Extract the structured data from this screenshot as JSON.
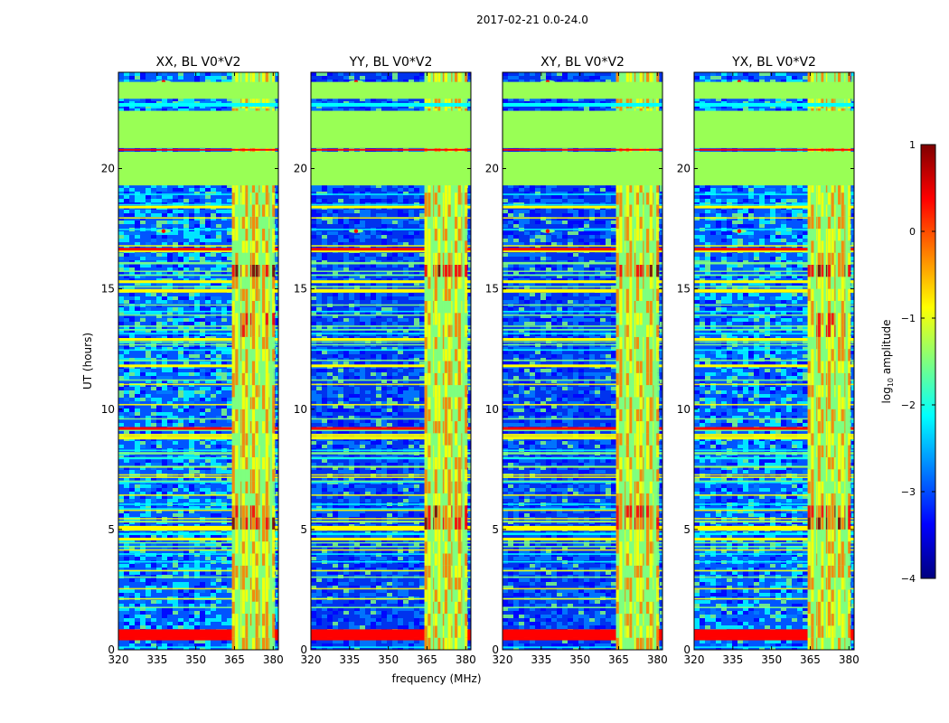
{
  "figure_title": "2017-02-21 0.0-24.0",
  "chart_data": [
    {
      "type": "heatmap",
      "title": "XX, BL V0*V2",
      "xlabel": "",
      "ylabel": "UT (hours)",
      "xlim": [
        320,
        382
      ],
      "ylim": [
        0,
        24
      ],
      "xticks": [
        320,
        335,
        350,
        365,
        380
      ],
      "yticks": [
        0,
        5,
        10,
        15,
        20
      ],
      "rfi_band_mhz": [
        364,
        380
      ],
      "flagged_hours": [
        [
          19.3,
          20.7
        ],
        [
          20.85,
          22.4
        ],
        [
          22.9,
          23.6
        ]
      ]
    },
    {
      "type": "heatmap",
      "title": "YY, BL V0*V2",
      "xlabel": "frequency (MHz)",
      "ylabel": "",
      "xlim": [
        320,
        382
      ],
      "ylim": [
        0,
        24
      ],
      "xticks": [
        320,
        335,
        350,
        365,
        380
      ],
      "yticks": [
        0,
        5,
        10,
        15,
        20
      ],
      "rfi_band_mhz": [
        364,
        380
      ],
      "flagged_hours": [
        [
          19.3,
          20.7
        ],
        [
          20.85,
          22.4
        ],
        [
          22.9,
          23.6
        ]
      ]
    },
    {
      "type": "heatmap",
      "title": "XY, BL V0*V2",
      "xlabel": "",
      "ylabel": "",
      "xlim": [
        320,
        382
      ],
      "ylim": [
        0,
        24
      ],
      "xticks": [
        320,
        335,
        350,
        365,
        380
      ],
      "yticks": [
        0,
        5,
        10,
        15,
        20
      ],
      "rfi_band_mhz": [
        364,
        380
      ],
      "flagged_hours": [
        [
          19.3,
          20.7
        ],
        [
          20.85,
          22.4
        ],
        [
          22.9,
          23.6
        ]
      ]
    },
    {
      "type": "heatmap",
      "title": "YX, BL V0*V2",
      "xlabel": "",
      "ylabel": "",
      "xlim": [
        320,
        382
      ],
      "ylim": [
        0,
        24
      ],
      "xticks": [
        320,
        335,
        350,
        365,
        380
      ],
      "yticks": [
        0,
        5,
        10,
        15,
        20
      ],
      "rfi_band_mhz": [
        364,
        380
      ],
      "flagged_hours": [
        [
          19.3,
          20.7
        ],
        [
          20.85,
          22.4
        ],
        [
          22.9,
          23.6
        ]
      ]
    }
  ],
  "colorbar": {
    "label_prefix": "log",
    "label_sub": "10",
    "label_suffix": " amplitude",
    "range": [
      -4,
      1
    ],
    "ticks": [
      "1",
      "0",
      "−1",
      "−2",
      "−3",
      "−4"
    ],
    "colormap": [
      "#00007f",
      "#0000ff",
      "#007fff",
      "#00ffff",
      "#7fff7f",
      "#ffff00",
      "#ff7f00",
      "#ff0000",
      "#7f0000"
    ],
    "flag_color": "#99ff55"
  }
}
